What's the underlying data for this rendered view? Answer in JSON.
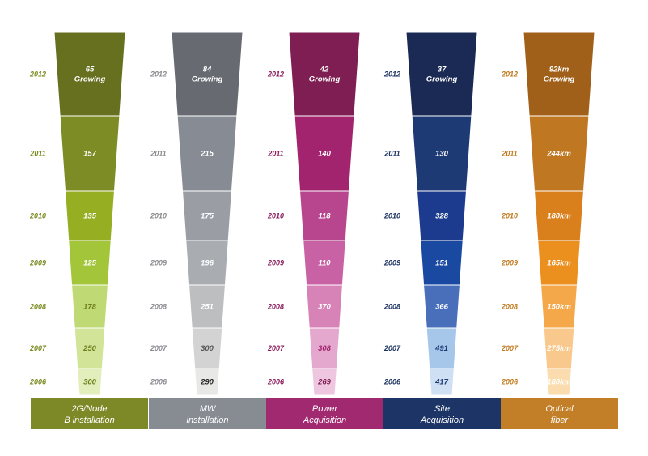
{
  "chart_data": {
    "type": "funnel",
    "title": "",
    "categories": [
      "2012",
      "2011",
      "2010",
      "2009",
      "2008",
      "2007",
      "2006"
    ],
    "series": [
      {
        "name": "2G/Node B installation",
        "footer_lines": [
          "2G/Node",
          "B installation"
        ],
        "year_color": "#7a8a1e",
        "footer_color": "#7d8826",
        "colors": [
          "#66701f",
          "#7d8c25",
          "#95ae22",
          "#a2c53a",
          "#bfda74",
          "#d1e498",
          "#e2eebb"
        ],
        "text_colors": [
          "#ffffff",
          "#ffffff",
          "#ffffff",
          "#ffffff",
          "#6f7f1e",
          "#6f7f1e",
          "#6f7f1e"
        ],
        "labels": [
          "65\nGrowing",
          "157",
          "135",
          "125",
          "178",
          "250",
          "300"
        ],
        "values": [
          65,
          157,
          135,
          125,
          178,
          250,
          300
        ]
      },
      {
        "name": "MW installation",
        "footer_lines": [
          "MW",
          "installation"
        ],
        "year_color": "#888a8f",
        "footer_color": "#878b92",
        "colors": [
          "#676a71",
          "#878c94",
          "#9a9ea4",
          "#a9acb0",
          "#bcbebf",
          "#d3d3d3",
          "#e8e8e6"
        ],
        "text_colors": [
          "#ffffff",
          "#ffffff",
          "#ffffff",
          "#ffffff",
          "#ffffff",
          "#555555",
          "#222222"
        ],
        "labels": [
          "84\nGrowing",
          "215",
          "175",
          "196",
          "251",
          "300",
          "290"
        ],
        "values": [
          84,
          215,
          175,
          196,
          251,
          300,
          290
        ]
      },
      {
        "name": "Power Acquisition",
        "footer_lines": [
          "Power",
          "Acquisition"
        ],
        "year_color": "#8b1a5a",
        "footer_color": "#a0296f",
        "colors": [
          "#7e1e52",
          "#a2236e",
          "#b7468f",
          "#c862a4",
          "#d783b7",
          "#e4a7cd",
          "#eec6e0"
        ],
        "text_colors": [
          "#ffffff",
          "#ffffff",
          "#ffffff",
          "#ffffff",
          "#ffffff",
          "#a2236e",
          "#7e1e52"
        ],
        "labels": [
          "42\nGrowing",
          "140",
          "118",
          "110",
          "370",
          "308",
          "269"
        ],
        "values": [
          42,
          140,
          118,
          110,
          370,
          308,
          269
        ]
      },
      {
        "name": "Site Acquisition",
        "footer_lines": [
          "Site",
          "Acquisition"
        ],
        "year_color": "#1c3260",
        "footer_color": "#1c3566",
        "colors": [
          "#1a2a55",
          "#1e3a74",
          "#1c3b8e",
          "#1a49a2",
          "#4a6fba",
          "#a6c7ea",
          "#cfe0f4"
        ],
        "text_colors": [
          "#ffffff",
          "#ffffff",
          "#ffffff",
          "#ffffff",
          "#ffffff",
          "#1e3a74",
          "#1e3a74"
        ],
        "labels": [
          "37\nGrowing",
          "130",
          "328",
          "151",
          "366",
          "491",
          "417"
        ],
        "values": [
          37,
          130,
          328,
          151,
          366,
          491,
          417
        ]
      },
      {
        "name": "Optical fiber",
        "footer_lines": [
          "Optical",
          "fiber"
        ],
        "year_color": "#c07a1e",
        "footer_color": "#c27f27",
        "colors": [
          "#a0601a",
          "#bf7722",
          "#d9801d",
          "#eb8f1e",
          "#f4a84a",
          "#f8c88c",
          "#fbdcae"
        ],
        "text_colors": [
          "#ffffff",
          "#ffffff",
          "#ffffff",
          "#ffffff",
          "#ffffff",
          "#ffffff",
          "#ffffff"
        ],
        "labels": [
          "92km\nGrowing",
          "244km",
          "180km",
          "165km",
          "150km",
          "275km",
          "180km"
        ],
        "values": [
          92,
          244,
          180,
          165,
          150,
          275,
          180
        ]
      }
    ]
  }
}
